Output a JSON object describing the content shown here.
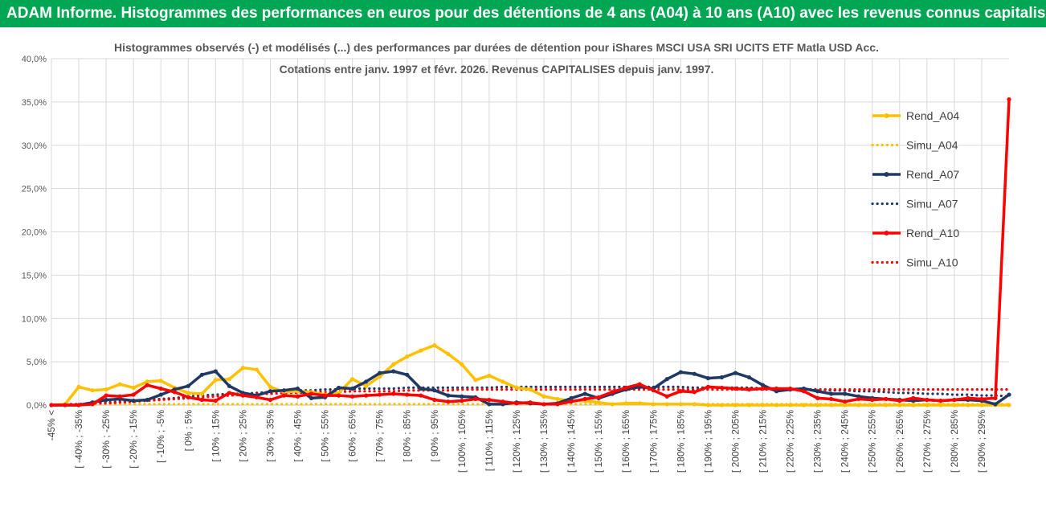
{
  "header": {
    "banner": "ADAM Informe. Histogrammes des performances en euros pour des détentions de 4 ans (A04) à 10 ans (A10) avec les revenus connus capitalisés"
  },
  "colors": {
    "banner_bg": "#00a651",
    "A04": "#ffc000",
    "A07": "#1f3864",
    "A10": "#ff0000",
    "grid": "#d9d9d9"
  },
  "chart_data": {
    "type": "line",
    "title_line1": "Histogrammes observés (-) et modélisés (...) des performances par durées de détention pour iShares MSCI USA SRI UCITS ETF Matla USD Acc.",
    "title_line2": "Cotations entre janv. 1997 et févr. 2026. Revenus CAPITALISES depuis janv. 1997.",
    "ylim": [
      0,
      40
    ],
    "y_ticks": [
      "0,0%",
      "5,0%",
      "10,0%",
      "15,0%",
      "20,0%",
      "25,0%",
      "30,0%",
      "35,0%",
      "40,0%"
    ],
    "y_tick_values": [
      0,
      5,
      10,
      15,
      20,
      25,
      30,
      35,
      40
    ],
    "grid": true,
    "legend_position": "right",
    "x_labels_shown": [
      "-45% <",
      "[ -40% ; -35%",
      "[ -30% ; -25%",
      "[ -20% ; -15%",
      "[ -10% ; -5%",
      "[ 0% ; 5%",
      "[ 10% ; 15%",
      "[ 20% ; 25%",
      "[ 30% ; 35%",
      "[ 40% ; 45%",
      "[ 50% ; 55%",
      "[ 60% ; 65%",
      "[ 70% ; 75%",
      "[ 80% ; 85%",
      "[ 90% ; 95%",
      "[ 100% ; 105%",
      "[ 110% ; 115%",
      "[ 120% ; 125%",
      "[ 130% ; 135%",
      "[ 140% ; 145%",
      "[ 150% ; 155%",
      "[ 160% ; 165%",
      "[ 170% ; 175%",
      "[ 180% ; 185%",
      "[ 190% ; 195%",
      "[ 200% ; 205%",
      "[ 210% ; 215%",
      "[ 220% ; 225%",
      "[ 230% ; 235%",
      "[ 240% ; 245%",
      "[ 250% ; 255%",
      "[ 260% ; 265%",
      "[ 270% ; 275%",
      "[ 280% ; 285%",
      "[ 290% ; 295%"
    ],
    "series": [
      {
        "name": "Rend_A04",
        "style": "solid",
        "color": "#ffc000",
        "values": [
          0,
          0.1,
          2.1,
          1.7,
          1.8,
          2.4,
          2.0,
          2.7,
          2.8,
          2.0,
          1.4,
          1.3,
          2.9,
          3.0,
          4.3,
          4.1,
          2.1,
          1.5,
          1.6,
          1.5,
          1.2,
          1.4,
          3.0,
          2.2,
          3.3,
          4.7,
          5.6,
          6.3,
          6.9,
          5.9,
          4.7,
          2.9,
          3.4,
          2.7,
          2.0,
          1.8,
          1.0,
          0.7,
          0.5,
          0.5,
          0.3,
          0.1,
          0.2,
          0.2,
          0.1,
          0.1,
          0.1,
          0.1,
          0,
          0,
          0,
          0,
          0,
          0,
          0,
          0,
          0,
          0,
          0,
          0,
          0,
          0,
          0,
          0,
          0,
          0,
          0,
          0,
          0,
          0,
          0
        ]
      },
      {
        "name": "Simu_A04",
        "style": "dotted",
        "color": "#ffc000",
        "values": [
          0,
          0,
          0,
          0.1,
          0.1,
          0.1,
          0.1,
          0.1,
          0.1,
          0.1,
          0.1,
          0.1,
          0.1,
          0.1,
          0.1,
          0.1,
          0.1,
          0.1,
          0.1,
          0.1,
          0.1,
          0.1,
          0.1,
          0.1,
          0.1,
          0.1,
          0.1,
          0.1,
          0.1,
          0.1,
          0.1,
          0.1,
          0.1,
          0.1,
          0.1,
          0.1,
          0.1,
          0.1,
          0.1,
          0.1,
          0.1,
          0.1,
          0.1,
          0.1,
          0.1,
          0.1,
          0.1,
          0.1,
          0.1,
          0.1,
          0.1,
          0.1,
          0.1,
          0.1,
          0.1,
          0.1,
          0.1,
          0.1,
          0.1,
          0.1,
          0.1,
          0.1,
          0.1,
          0.1,
          0.1,
          0.1,
          0.1,
          0.1,
          0.1,
          0.1,
          0.1
        ]
      },
      {
        "name": "Rend_A07",
        "style": "solid",
        "color": "#1f3864",
        "values": [
          0,
          0,
          0,
          0.3,
          0.6,
          0.7,
          0.5,
          0.6,
          1.2,
          1.8,
          2.2,
          3.5,
          3.9,
          2.2,
          1.4,
          1.1,
          1.6,
          1.7,
          1.9,
          0.8,
          0.9,
          2.0,
          1.9,
          2.7,
          3.7,
          3.9,
          3.5,
          1.9,
          1.7,
          1.1,
          1.0,
          0.9,
          0.1,
          0.1,
          0.3,
          0.2,
          0.1,
          0.2,
          0.8,
          1.3,
          0.8,
          1.3,
          1.8,
          2.1,
          1.9,
          3.0,
          3.8,
          3.6,
          3.1,
          3.2,
          3.7,
          3.2,
          2.3,
          1.6,
          1.8,
          1.9,
          1.6,
          1.3,
          1.3,
          1.0,
          0.8,
          0.7,
          0.6,
          0.5,
          0.6,
          0.5,
          0.6,
          0.6,
          0.5,
          0.1,
          1.2
        ]
      },
      {
        "name": "Simu_A07",
        "style": "dotted",
        "color": "#1f3864",
        "values": [
          0,
          0,
          0.1,
          0.2,
          0.3,
          0.4,
          0.5,
          0.6,
          0.7,
          0.8,
          1.0,
          1.1,
          1.2,
          1.3,
          1.3,
          1.4,
          1.5,
          1.6,
          1.7,
          1.7,
          1.8,
          1.8,
          1.9,
          1.9,
          1.9,
          1.9,
          2.0,
          2.0,
          2.0,
          2.0,
          2.0,
          2.0,
          2.0,
          2.1,
          2.1,
          2.1,
          2.1,
          2.1,
          2.1,
          2.1,
          2.1,
          2.1,
          2.1,
          2.1,
          2.1,
          2.1,
          2.1,
          2.0,
          2.0,
          2.0,
          2.0,
          2.0,
          1.9,
          1.9,
          1.9,
          1.8,
          1.8,
          1.7,
          1.7,
          1.6,
          1.6,
          1.5,
          1.4,
          1.4,
          1.3,
          1.3,
          1.2,
          1.2,
          1.1,
          1.1,
          1.0
        ]
      },
      {
        "name": "Rend_A10",
        "style": "solid",
        "color": "#ff0000",
        "values": [
          0,
          0,
          0,
          0.1,
          1.1,
          1.0,
          1.2,
          2.3,
          1.9,
          1.5,
          0.9,
          0.6,
          0.5,
          1.4,
          1.1,
          0.9,
          0.6,
          1.1,
          1.0,
          1.3,
          1.1,
          1.1,
          1.0,
          1.1,
          1.2,
          1.3,
          1.2,
          1.1,
          0.6,
          0.4,
          0.5,
          0.7,
          0.6,
          0.4,
          0.2,
          0.3,
          0.1,
          0.1,
          0.4,
          0.7,
          0.9,
          1.5,
          2.0,
          2.4,
          1.7,
          1.0,
          1.6,
          1.5,
          2.1,
          2.0,
          1.9,
          1.8,
          1.9,
          1.9,
          1.9,
          1.6,
          0.8,
          0.7,
          0.4,
          0.7,
          0.6,
          0.7,
          0.5,
          0.8,
          0.6,
          0.5,
          0.6,
          0.8,
          0.7,
          0.8,
          35.3
        ]
      },
      {
        "name": "Simu_A10",
        "style": "dotted",
        "color": "#ff0000",
        "values": [
          0,
          0.1,
          0.1,
          0.2,
          0.2,
          0.3,
          0.4,
          0.5,
          0.6,
          0.7,
          0.8,
          0.9,
          1.0,
          1.1,
          1.2,
          1.3,
          1.3,
          1.4,
          1.4,
          1.5,
          1.5,
          1.5,
          1.6,
          1.6,
          1.6,
          1.6,
          1.7,
          1.7,
          1.7,
          1.7,
          1.8,
          1.8,
          1.8,
          1.8,
          1.8,
          1.8,
          1.8,
          1.8,
          1.8,
          1.8,
          1.8,
          1.8,
          1.8,
          1.8,
          1.8,
          1.8,
          1.8,
          1.8,
          1.8,
          1.8,
          1.8,
          1.8,
          1.8,
          1.8,
          1.8,
          1.8,
          1.8,
          1.8,
          1.8,
          1.8,
          1.8,
          1.8,
          1.8,
          1.8,
          1.8,
          1.8,
          1.8,
          1.8,
          1.8,
          1.8,
          1.8
        ]
      }
    ]
  }
}
